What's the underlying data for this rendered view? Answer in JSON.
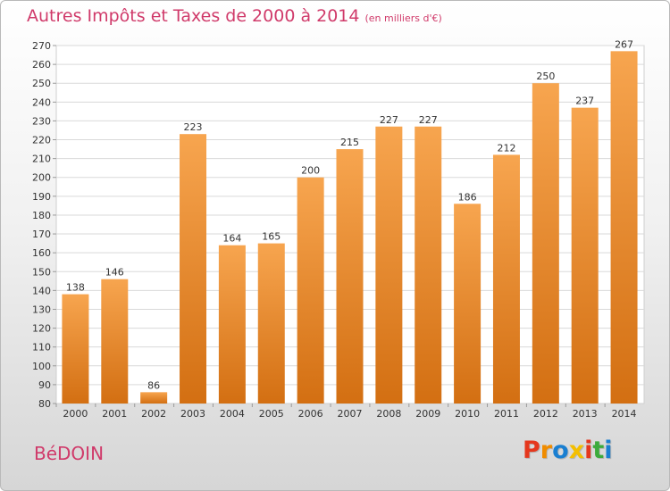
{
  "header": {
    "title": "Autres Impôts et Taxes de 2000 à 2014",
    "subtitle": "(en milliers d'€)"
  },
  "footer": {
    "commune": "BéDOIN",
    "logo_text": "Proxiti"
  },
  "colors": {
    "bar_top": "#f7a54f",
    "bar_bottom": "#d36f12",
    "title": "#d03a6a",
    "logo": [
      "#e5371d",
      "#f08c00",
      "#1a7fd1",
      "#f4bf00",
      "#e5371d",
      "#3cab3c",
      "#1a7fd1"
    ]
  },
  "chart_data": {
    "type": "bar",
    "title": "Autres Impôts et Taxes de 2000 à 2014",
    "subtitle": "(en milliers d'€)",
    "categories": [
      "2000",
      "2001",
      "2002",
      "2003",
      "2004",
      "2005",
      "2006",
      "2007",
      "2008",
      "2009",
      "2010",
      "2011",
      "2012",
      "2013",
      "2014"
    ],
    "values": [
      138,
      146,
      86,
      223,
      164,
      165,
      200,
      215,
      227,
      227,
      186,
      212,
      250,
      237,
      267
    ],
    "ylim": [
      80,
      270
    ],
    "yticks": [
      80,
      90,
      100,
      110,
      120,
      130,
      140,
      150,
      160,
      170,
      180,
      190,
      200,
      210,
      220,
      230,
      240,
      250,
      260,
      270
    ],
    "grid": true,
    "xlabel": "",
    "ylabel": ""
  }
}
